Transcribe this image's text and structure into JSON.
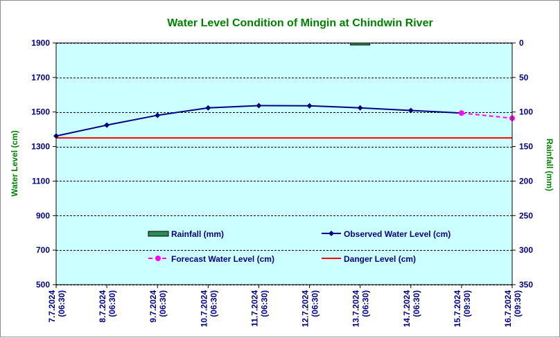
{
  "chart_data": {
    "type": "line",
    "title": "Water Level Condition of Mingin at Chindwin River",
    "y_left_label": "Water Level (cm)",
    "y_right_label": "Rainfall (mm)",
    "ylim_left": [
      500,
      1900
    ],
    "ylim_right": [
      0,
      350
    ],
    "right_axis_inverted": true,
    "grid": true,
    "legend_position": "bottom-inside",
    "y_left_ticks": [
      500,
      700,
      900,
      1100,
      1300,
      1500,
      1700,
      1900
    ],
    "y_right_ticks": [
      0,
      50,
      100,
      150,
      200,
      250,
      300,
      350
    ],
    "categories": [
      "7.7.2024 (06:30)",
      "8.7.2024 (06:30)",
      "9.7.2024 (06:30)",
      "10.7.2024 (06:30)",
      "11.7.2024 (06:30)",
      "12.7.2024 (06:30)",
      "13.7.2024 (06:30)",
      "14.7.2024 (06:30)",
      "15.7.2024 (09:30)",
      "16.7.2024 (09:30)"
    ],
    "series": [
      {
        "name": "Rainfall (mm)",
        "kind": "bar",
        "axis": "right",
        "color": "#2e8b57",
        "bars": [
          {
            "index": 6.0,
            "value": 3
          }
        ]
      },
      {
        "name": "Observed Water Level (cm)",
        "kind": "line",
        "axis": "left",
        "color": "#000080",
        "points": [
          {
            "index": 0,
            "value": 1361
          },
          {
            "index": 1,
            "value": 1424
          },
          {
            "index": 2,
            "value": 1481
          },
          {
            "index": 3,
            "value": 1524
          },
          {
            "index": 4,
            "value": 1537
          },
          {
            "index": 5,
            "value": 1536
          },
          {
            "index": 6,
            "value": 1524
          },
          {
            "index": 7,
            "value": 1509
          },
          {
            "index": 8,
            "value": 1494
          }
        ]
      },
      {
        "name": "Forecast Water Level (cm)",
        "kind": "line",
        "axis": "left",
        "color": "#ff00ff",
        "dashed": true,
        "points": [
          {
            "index": 8,
            "value": 1494
          },
          {
            "index": 9,
            "value": 1464
          }
        ]
      },
      {
        "name": "Danger Level (cm)",
        "kind": "hline",
        "axis": "left",
        "color": "#ff0000",
        "value": 1350
      }
    ]
  },
  "style": {
    "title_color": "#008000",
    "tick_color": "#000080",
    "axis_label_color": "#008000",
    "plot_background": "#ccffff",
    "grid_color": "#000000",
    "legend_text_color": "#000080"
  }
}
